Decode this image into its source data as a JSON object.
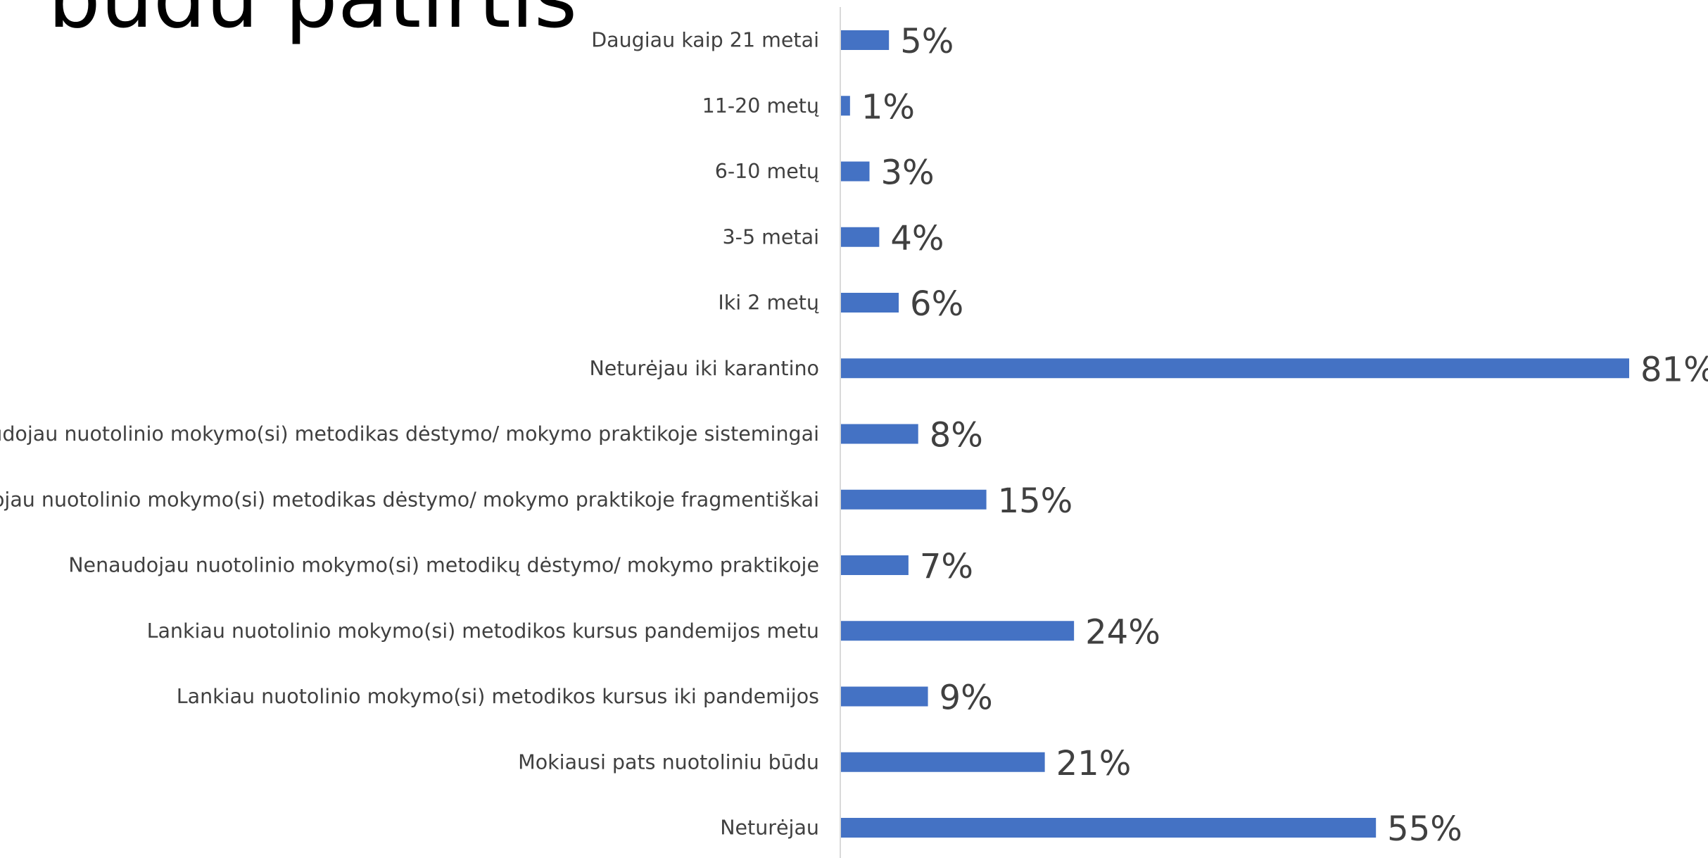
{
  "slide": {
    "title": "būdu patirtis"
  },
  "chart_data": {
    "type": "bar",
    "orientation": "horizontal",
    "categories": [
      "Daugiau kaip 21 metai",
      "11-20 metų",
      "6-10 metų",
      "3-5 metai",
      "Iki 2 metų",
      "Neturėjau iki karantino",
      "Naudojau nuotolinio mokymo(si) metodikas dėstymo/ mokymo praktikoje sistemingai",
      "Naudojau nuotolinio mokymo(si) metodikas dėstymo/ mokymo praktikoje fragmentiškai",
      "Nenaudojau nuotolinio mokymo(si) metodikų dėstymo/ mokymo praktikoje",
      "Lankiau nuotolinio mokymo(si) metodikos kursus pandemijos metu",
      "Lankiau nuotolinio mokymo(si) metodikos kursus iki pandemijos",
      "Mokiausi pats nuotoliniu būdu",
      "Neturėjau"
    ],
    "values": [
      5,
      1,
      3,
      4,
      6,
      81,
      8,
      15,
      7,
      24,
      9,
      21,
      55
    ],
    "value_labels": [
      "5%",
      "1%",
      "3%",
      "4%",
      "6%",
      "81%",
      "8%",
      "15%",
      "7%",
      "24%",
      "9%",
      "21%",
      "55%"
    ],
    "xlim": [
      0,
      81
    ],
    "unit": "%",
    "grid": false,
    "legend": "none",
    "colors": {
      "bar": "#4472C4",
      "axis": "#D9D9D9",
      "text": "#404040",
      "title": "#000000"
    }
  }
}
